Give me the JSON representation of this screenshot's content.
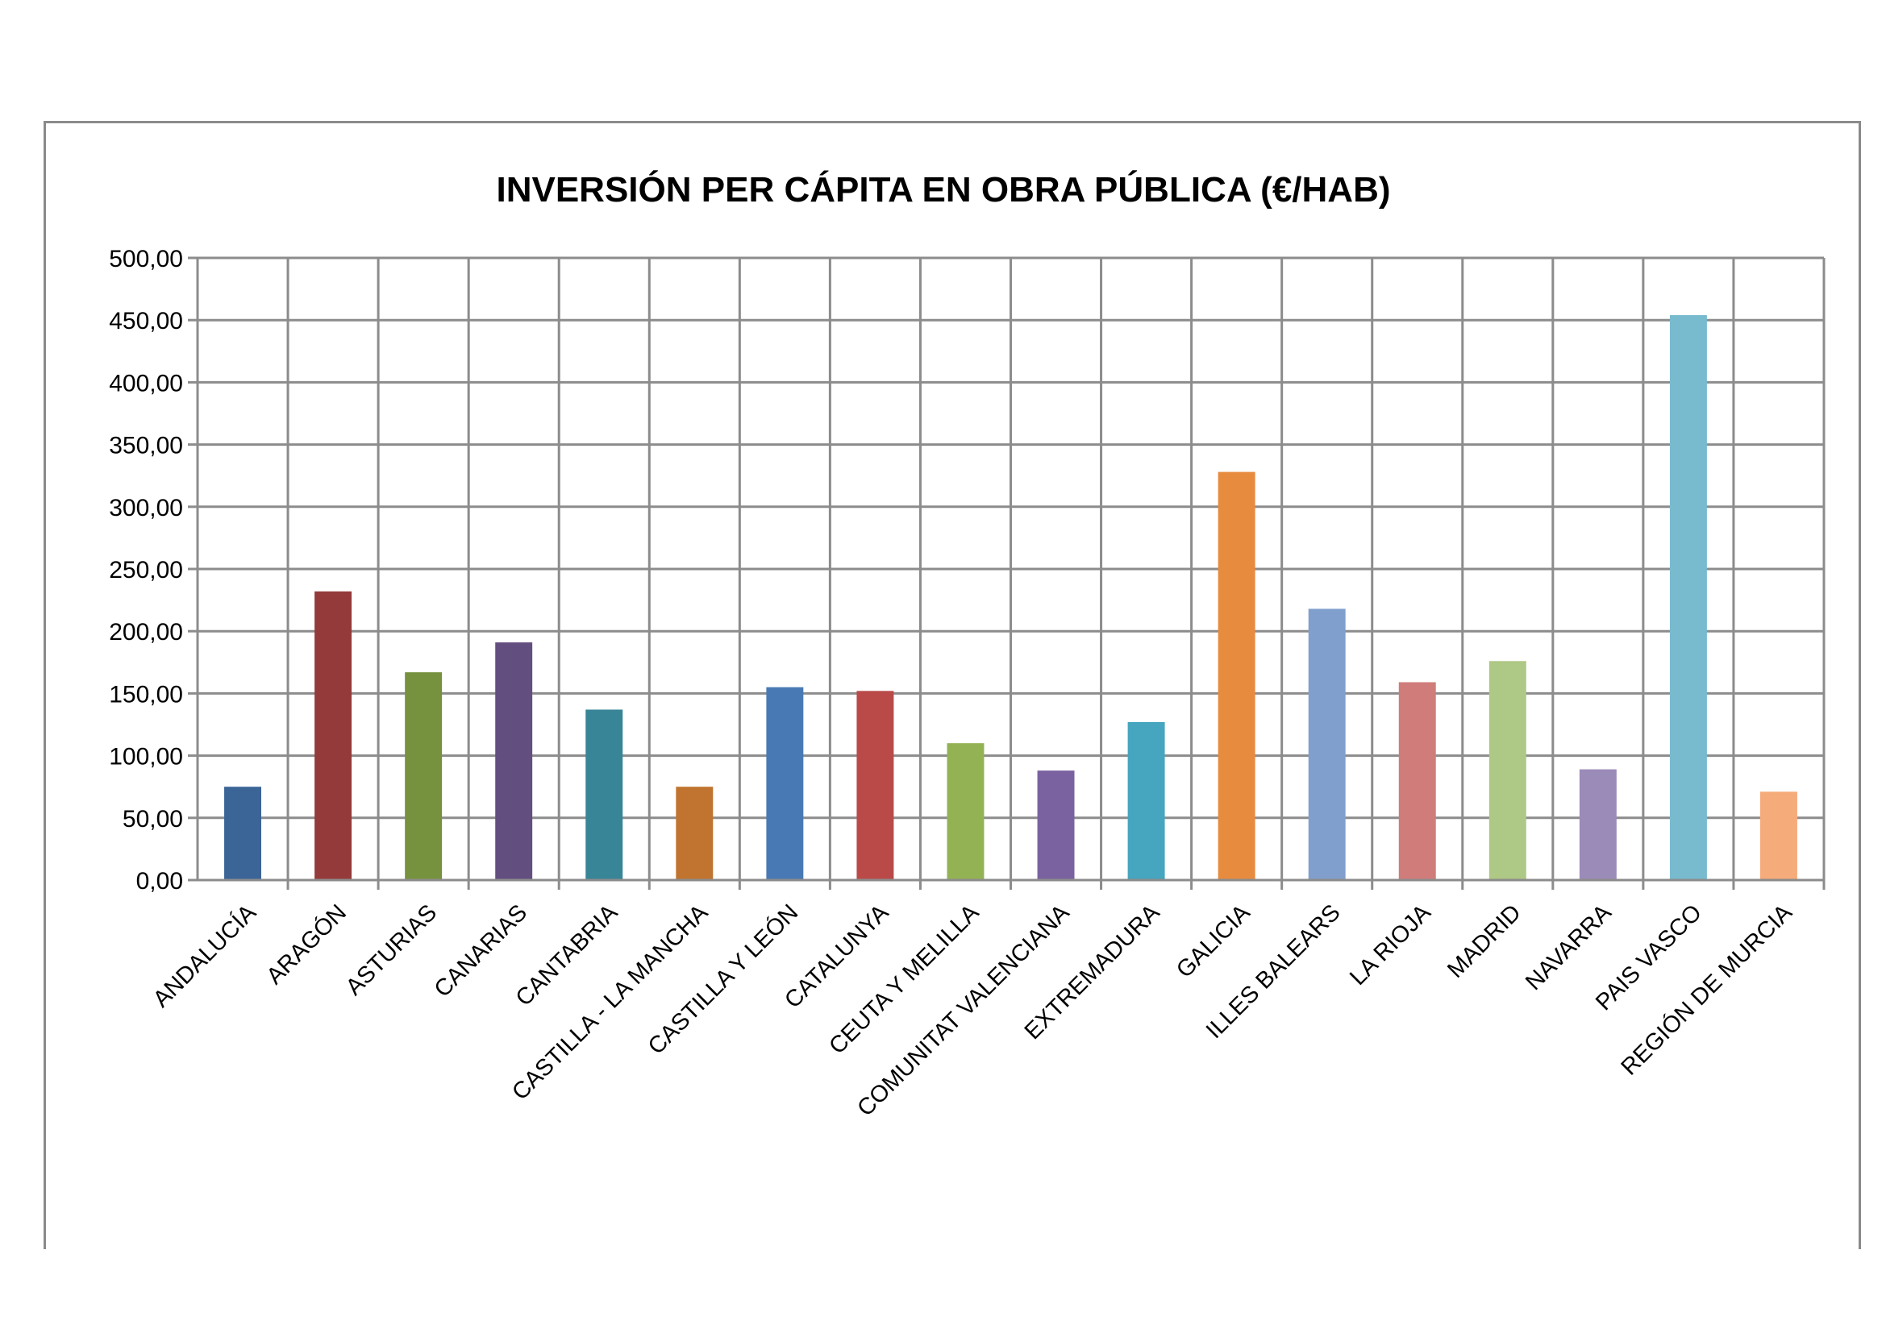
{
  "chart_data": {
    "type": "bar",
    "title": "INVERSIÓN PER CÁPITA EN OBRA PÚBLICA (€/HAB)",
    "xlabel": "",
    "ylabel": "",
    "ylim": [
      0,
      500
    ],
    "y_ticks": [
      "0,00",
      "50,00",
      "100,00",
      "150,00",
      "200,00",
      "250,00",
      "300,00",
      "350,00",
      "400,00",
      "450,00",
      "500,00"
    ],
    "grid": true,
    "legend": "none",
    "categories": [
      "ANDALUCÍA",
      "ARAGÓN",
      "ASTURIAS",
      "CANARIAS",
      "CANTABRIA",
      "CASTILLA - LA MANCHA",
      "CASTILLA Y LEÓN",
      "CATALUNYA",
      "CEUTA Y MELILLA",
      "COMUNITAT VALENCIANA",
      "EXTREMADURA",
      "GALICIA",
      "ILLES BALEARS",
      "LA RIOJA",
      "MADRID",
      "NAVARRA",
      "PAIS VASCO",
      "REGIÓN DE MURCIA"
    ],
    "values": [
      75,
      232,
      167,
      191,
      137,
      75,
      155,
      152,
      110,
      88,
      127,
      328,
      218,
      159,
      176,
      89,
      454,
      71
    ],
    "colors": [
      "#3b6497",
      "#953a3a",
      "#77923e",
      "#634e80",
      "#378597",
      "#c0742f",
      "#4979b4",
      "#b94a48",
      "#93b254",
      "#7a62a0",
      "#46a5bf",
      "#e78b3e",
      "#809fcd",
      "#cf7c7a",
      "#aec885",
      "#9b8bb8",
      "#78bbcf",
      "#f6ab7a"
    ]
  }
}
